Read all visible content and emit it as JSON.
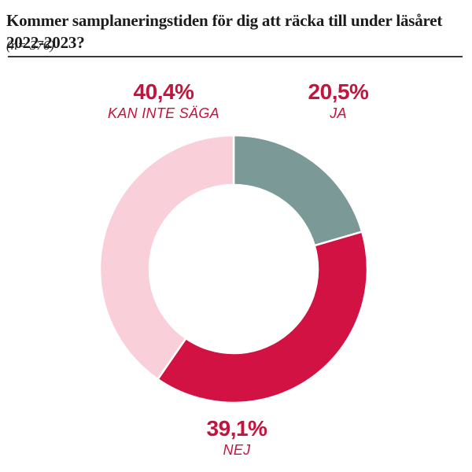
{
  "page": {
    "background": "#ffffff"
  },
  "header": {
    "title": "Kommer samplaneringstiden för dig att räcka till under läsåret 2022-2023?",
    "sample_size": "(n= 376)"
  },
  "chart_data": {
    "type": "pie",
    "subtype": "donut",
    "title": "Kommer samplaneringstiden för dig att räcka till under läsåret 2022-2023?",
    "n_label": "(n= 376)",
    "categories": [
      "JA",
      "NEJ",
      "KAN INTE SÄGA"
    ],
    "values": [
      20.5,
      39.1,
      40.4
    ],
    "segments": [
      {
        "label": "JA",
        "value": 20.5,
        "display": "20,5%",
        "color": "#7A9997"
      },
      {
        "label": "NEJ",
        "value": 39.1,
        "display": "39,1%",
        "color": "#D11243"
      },
      {
        "label": "KAN INTE SÄGA",
        "value": 40.4,
        "display": "40,4%",
        "color": "#F9CFD9"
      }
    ],
    "start_angle_deg": 0,
    "direction": "clockwise",
    "inner_radius_ratio": 0.63,
    "segment_gap_color": "#ffffff",
    "label_color": "#C4143E",
    "legend_position": "callouts"
  }
}
